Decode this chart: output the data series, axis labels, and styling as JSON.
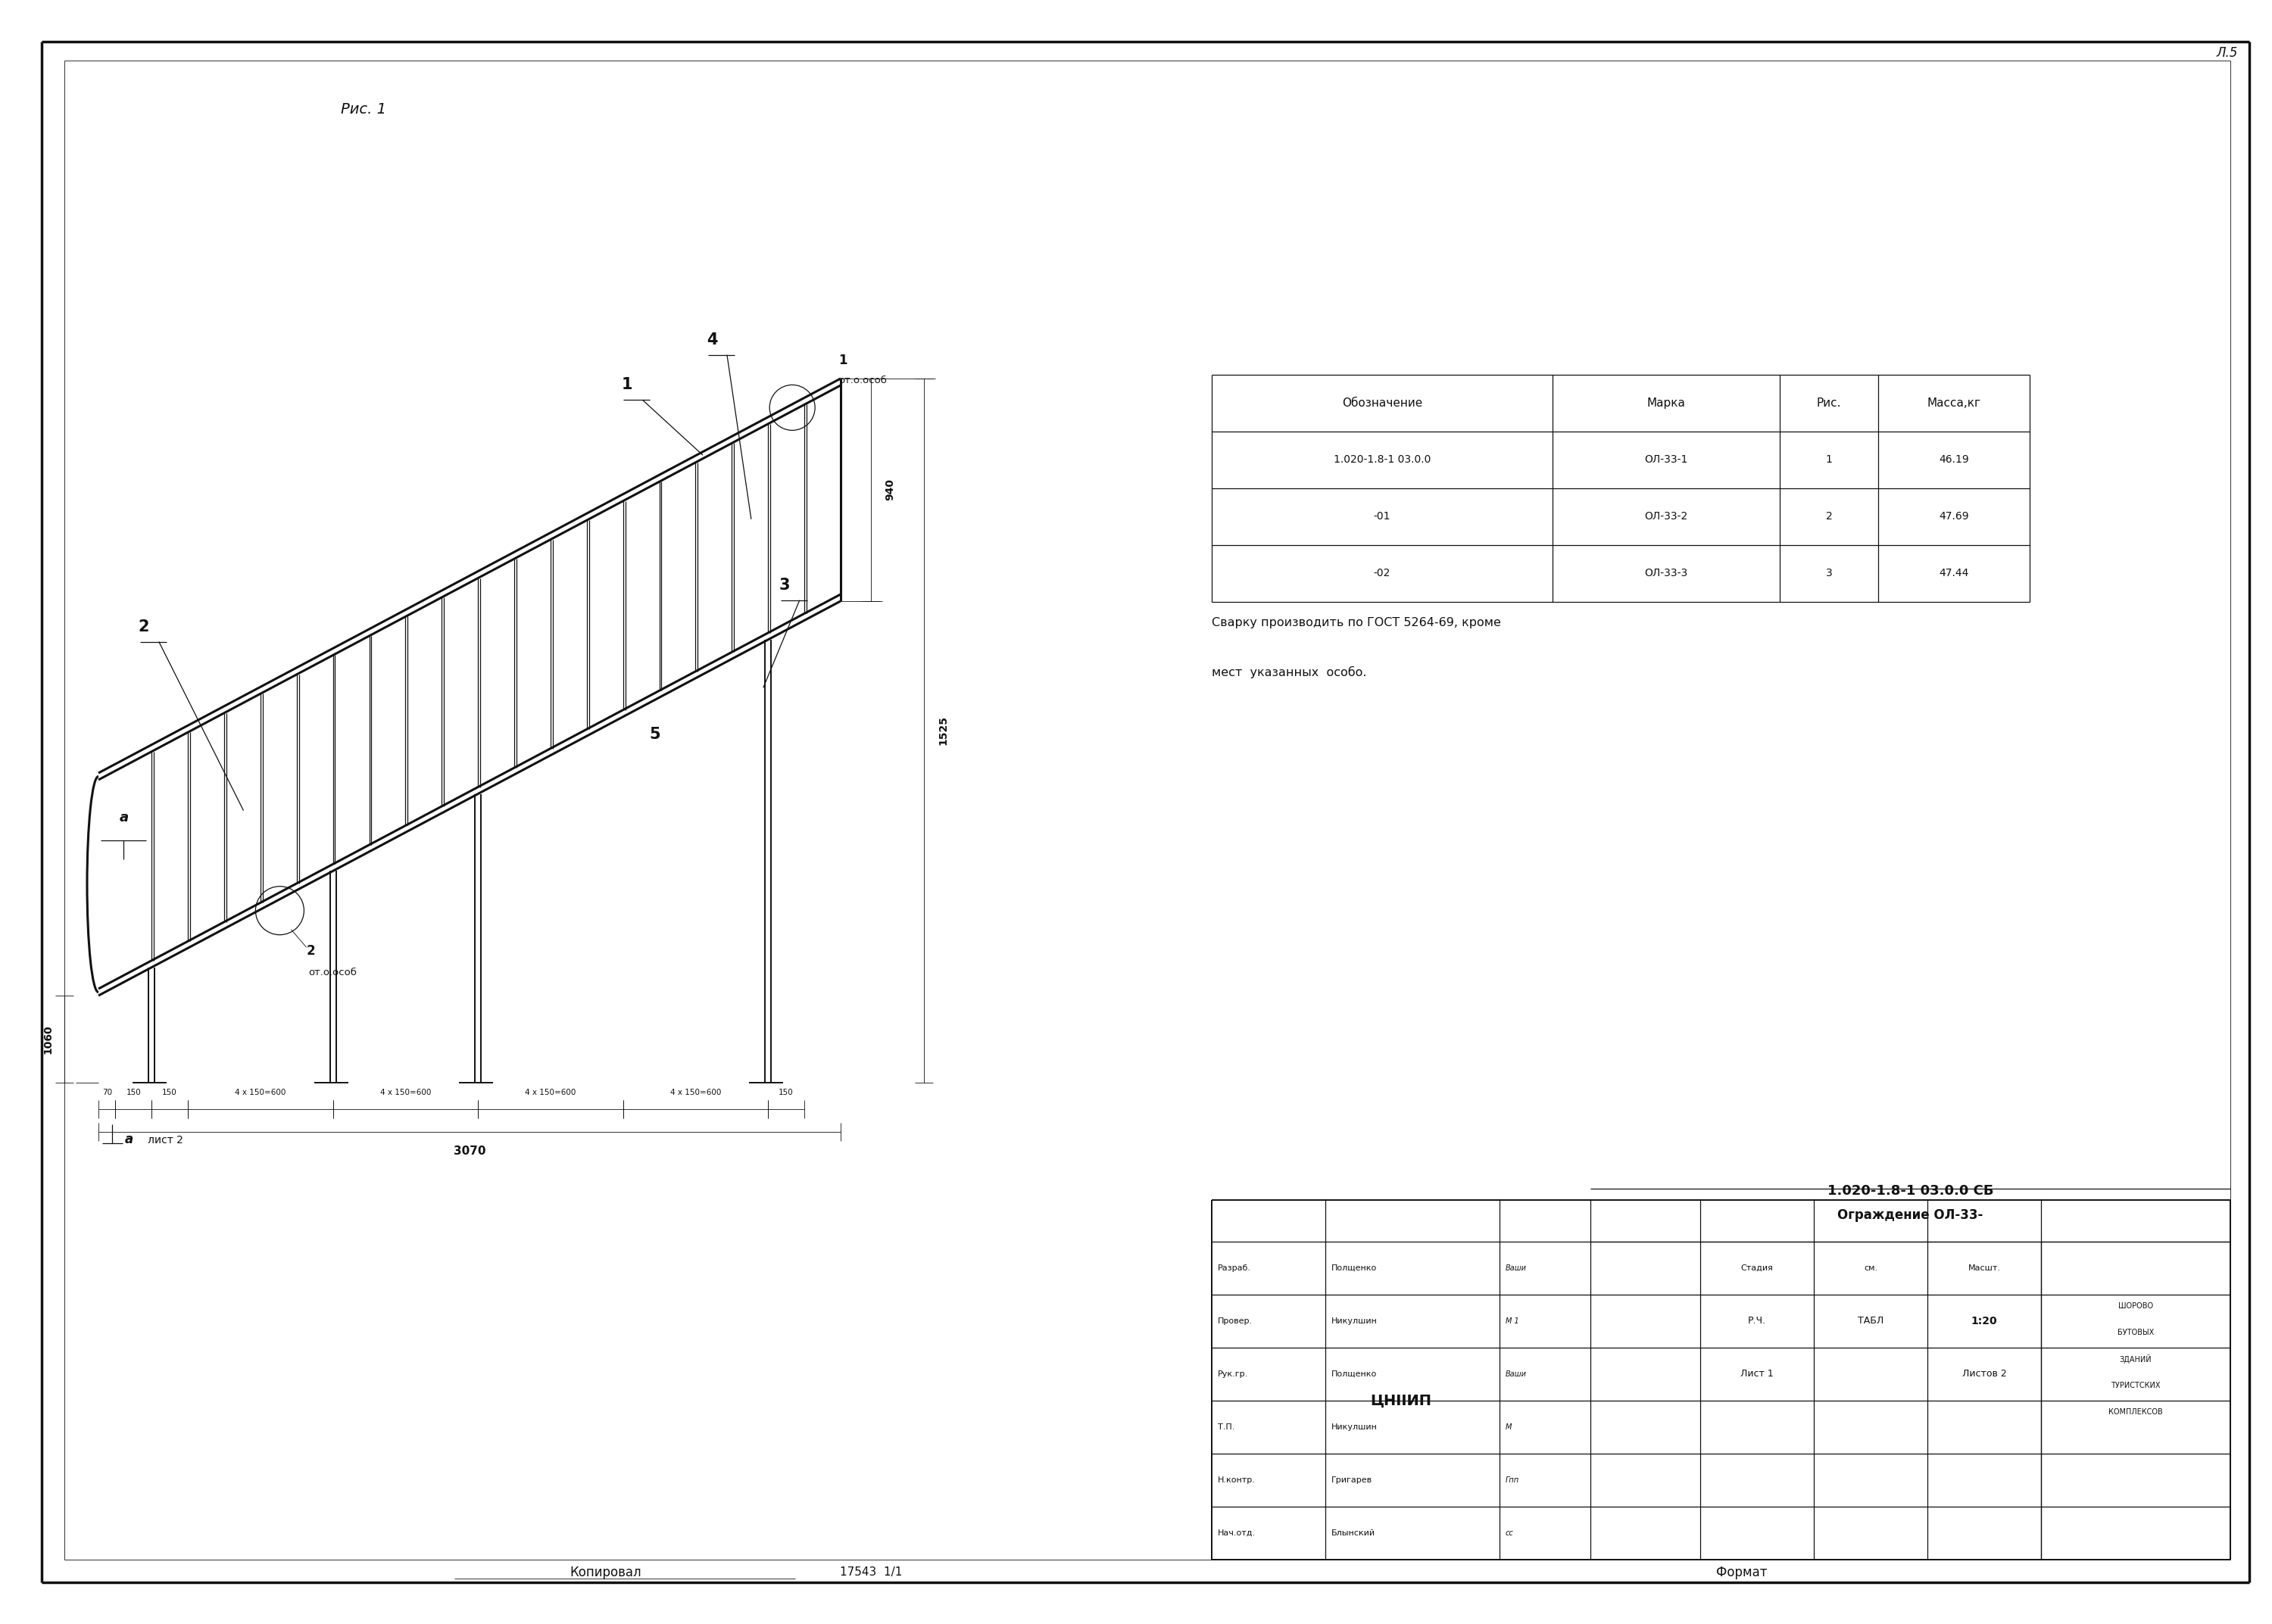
{
  "bg_color": "#ffffff",
  "line_color": "#111111",
  "title": "Рис. 1",
  "fig_width": 30.0,
  "fig_height": 21.45,
  "table_headers": [
    "Обозначение",
    "Марка",
    "Рис.",
    "Масса,кг"
  ],
  "table_rows": [
    [
      "1.020-1.8-1 03.0.0",
      "ОЛ-33-1",
      "1",
      "46.19"
    ],
    [
      "-01",
      "ОЛ-33-2",
      "2",
      "47.69"
    ],
    [
      "-02",
      "ОЛ-33-3",
      "3",
      "47.44"
    ]
  ],
  "weld_note_line1": "Сварку производить по ГОСТ 5264-69, кроме",
  "weld_note_line2": "мест  указанных  особо.",
  "doc_num": "1.020-1.8-1 03.0.0 СБ",
  "draw_name": "Ограждение ОЛ-33-",
  "scale": "1:20",
  "sheet_label": "Лист 1",
  "sheets_label": "Листов 2",
  "stage_label": "Стадия",
  "mass_label": "Масса",
  "scale_label": "Масшт.",
  "rch_label": "Р.Ч.",
  "tabl_label": "ТАБЛ",
  "org_label": "ЦНIIИП",
  "copy_label": "Копировал",
  "format_label": "Формат",
  "serial_label": "17543  1/1",
  "page_label": "Л.5",
  "roles": [
    [
      "Нач.отд.",
      "Блынский"
    ],
    [
      "Н.контр.",
      "Григарев"
    ],
    [
      "Т.П.",
      "Никулшин"
    ],
    [
      "Рук.гр.",
      "Полщенко"
    ],
    [
      "Провер.",
      "Никулшин"
    ],
    [
      "Разраб.",
      "Полщенко"
    ]
  ],
  "sign_labels": [
    "сс",
    "Гпп",
    "М",
    "Ваши",
    "М 1",
    "Ваши"
  ],
  "org_right": "ЦНIIИП",
  "org_bottom_lines": [
    "ШОРОВО",
    "БУТОВЫХ",
    "ЗДАНИЙ",
    "ТУРИСТСКИХ",
    "КОМПЛЕКСОВ"
  ]
}
